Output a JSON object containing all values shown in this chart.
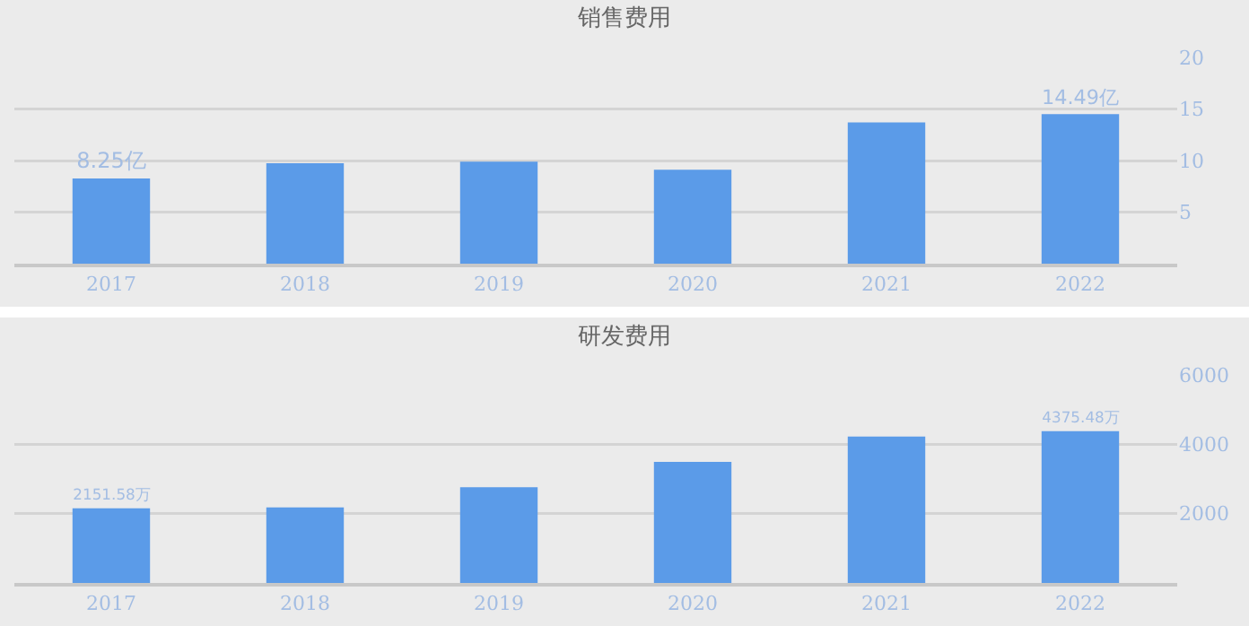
{
  "chart_data": [
    {
      "type": "bar",
      "title": "销售费用",
      "categories": [
        "2017",
        "2018",
        "2019",
        "2020",
        "2021",
        "2022"
      ],
      "values": [
        8.25,
        9.75,
        9.9,
        9.1,
        13.7,
        14.49
      ],
      "value_labels": [
        "8.25亿",
        null,
        null,
        null,
        null,
        "14.49亿"
      ],
      "color": "#5b9be8",
      "ylim": [
        0,
        20
      ],
      "yticks": [
        5,
        10,
        15,
        20
      ],
      "grid": "y",
      "legend": false
    },
    {
      "type": "bar",
      "title": "研发费用",
      "categories": [
        "2017",
        "2018",
        "2019",
        "2020",
        "2021",
        "2022"
      ],
      "values": [
        2151.58,
        2180,
        2760,
        3490,
        4220,
        4375.48
      ],
      "value_labels": [
        "2151.58万",
        null,
        null,
        null,
        null,
        "4375.48万"
      ],
      "color": "#5b9be8",
      "ylim": [
        0,
        6000
      ],
      "yticks": [
        2000,
        4000,
        6000
      ],
      "grid": "y",
      "legend": false
    }
  ]
}
